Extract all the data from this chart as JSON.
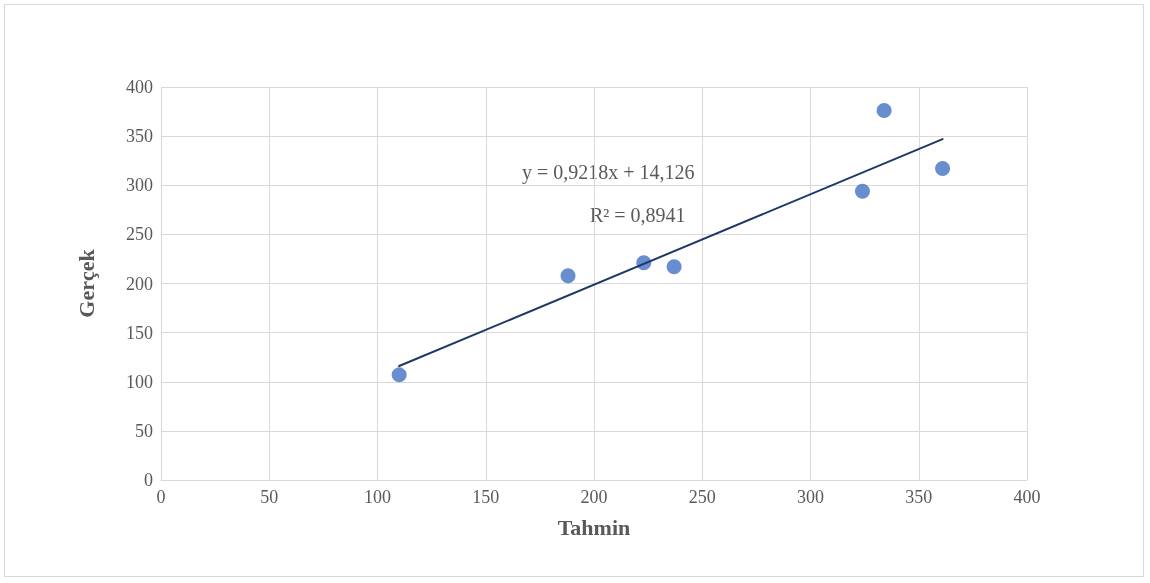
{
  "chart_data": {
    "type": "scatter",
    "xlabel": "Tahmin",
    "ylabel": "Gerçek",
    "annotations": [
      "y = 0,9218x + 14,126",
      "R² = 0,8941"
    ],
    "xlim": [
      0,
      400
    ],
    "xticks": [
      0,
      50,
      100,
      150,
      200,
      250,
      300,
      350,
      400
    ],
    "ylim": [
      0,
      400
    ],
    "yticks": [
      0,
      50,
      100,
      150,
      200,
      250,
      300,
      350,
      400
    ],
    "grid": true,
    "series": [
      {
        "type": "scatter",
        "color": "#4472c4",
        "marker": "circle",
        "x": [
          110,
          188,
          223,
          237,
          324,
          334,
          361
        ],
        "values": [
          107,
          208,
          221,
          217,
          294,
          376,
          317
        ]
      },
      {
        "type": "line",
        "color": "#1f3864",
        "marker": "none",
        "line_style": "solid",
        "x": [
          110,
          361
        ],
        "values": [
          116,
          347
        ]
      }
    ]
  }
}
